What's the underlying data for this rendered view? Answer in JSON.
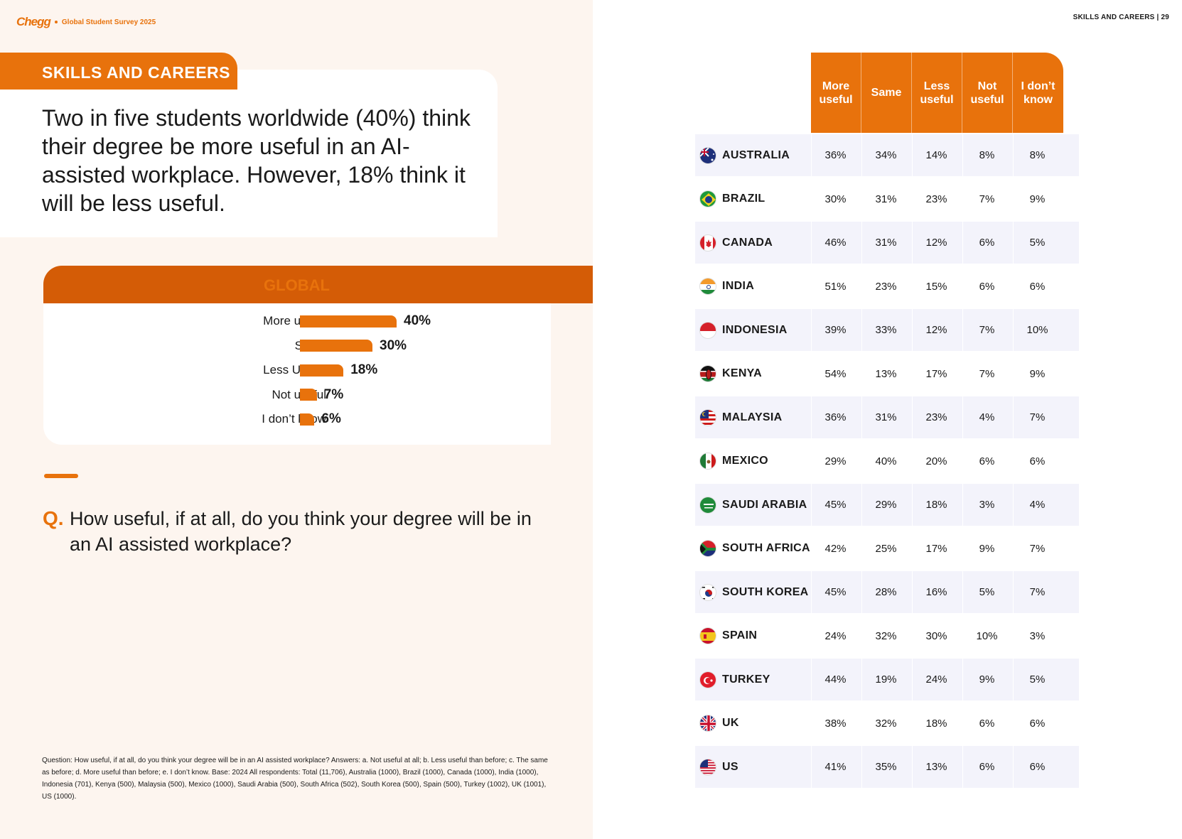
{
  "brand": {
    "logo": "Chegg",
    "subtitle": "Global Student Survey 2025"
  },
  "page_header": "SKILLS AND CAREERS  |  29",
  "section_tab": "SKILLS AND CAREERS",
  "headline": "Two in five students worldwide (40%) think their degree be more useful in an AI-assisted workplace. However, 18% think it will be less useful.",
  "global_title": "GLOBAL",
  "colors": {
    "accent": "#e8720c",
    "accent_dark": "#d45c06",
    "row_shade": "#f3f3fb",
    "panel_bg": "#fdf5ef"
  },
  "chart_data": {
    "type": "bar",
    "title": "GLOBAL",
    "categories": [
      "More useful",
      "Same",
      "Less Useful",
      "Not useful",
      "I don’t know"
    ],
    "values": [
      40,
      30,
      18,
      7,
      6
    ],
    "value_labels": [
      "40%",
      "30%",
      "18%",
      "7%",
      "6%"
    ],
    "unit": "%",
    "orientation": "horizontal"
  },
  "question": {
    "mark": "Q.",
    "text": "How useful, if at all, do you think your degree will be in an AI assisted workplace?"
  },
  "footnote": "Question: How useful, if at all, do you think your degree will be in an AI assisted workplace? Answers: a. Not useful at all; b. Less useful than before; c. The same as before; d. More useful than before; e. I don’t know. Base: 2024 All respondents: Total (11,706), Australia (1000), Brazil (1000), Canada (1000), India (1000), Indonesia (701), Kenya (500), Malaysia (500), Mexico (1000), Saudi Arabia (500), South Africa (502), South Korea (500), Spain (500), Turkey (1002), UK (1001), US (1000).",
  "table": {
    "headers": [
      "More useful",
      "Same",
      "Less useful",
      "Not useful",
      "I don’t know"
    ],
    "rows": [
      {
        "country": "AUSTRALIA",
        "flag": "australia-flag-icon",
        "values": [
          "36%",
          "34%",
          "14%",
          "8%",
          "8%"
        ]
      },
      {
        "country": "BRAZIL",
        "flag": "brazil-flag-icon",
        "values": [
          "30%",
          "31%",
          "23%",
          "7%",
          "9%"
        ]
      },
      {
        "country": "CANADA",
        "flag": "canada-flag-icon",
        "values": [
          "46%",
          "31%",
          "12%",
          "6%",
          "5%"
        ]
      },
      {
        "country": "INDIA",
        "flag": "india-flag-icon",
        "values": [
          "51%",
          "23%",
          "15%",
          "6%",
          "6%"
        ]
      },
      {
        "country": "INDONESIA",
        "flag": "indonesia-flag-icon",
        "values": [
          "39%",
          "33%",
          "12%",
          "7%",
          "10%"
        ]
      },
      {
        "country": "KENYA",
        "flag": "kenya-flag-icon",
        "values": [
          "54%",
          "13%",
          "17%",
          "7%",
          "9%"
        ]
      },
      {
        "country": "MALAYSIA",
        "flag": "malaysia-flag-icon",
        "values": [
          "36%",
          "31%",
          "23%",
          "4%",
          "7%"
        ]
      },
      {
        "country": "MEXICO",
        "flag": "mexico-flag-icon",
        "values": [
          "29%",
          "40%",
          "20%",
          "6%",
          "6%"
        ]
      },
      {
        "country": "SAUDI ARABIA",
        "flag": "saudi-arabia-flag-icon",
        "values": [
          "45%",
          "29%",
          "18%",
          "3%",
          "4%"
        ]
      },
      {
        "country": "SOUTH AFRICA",
        "flag": "south-africa-flag-icon",
        "values": [
          "42%",
          "25%",
          "17%",
          "9%",
          "7%"
        ]
      },
      {
        "country": "SOUTH KOREA",
        "flag": "south-korea-flag-icon",
        "values": [
          "45%",
          "28%",
          "16%",
          "5%",
          "7%"
        ]
      },
      {
        "country": "SPAIN",
        "flag": "spain-flag-icon",
        "values": [
          "24%",
          "32%",
          "30%",
          "10%",
          "3%"
        ]
      },
      {
        "country": "TURKEY",
        "flag": "turkey-flag-icon",
        "values": [
          "44%",
          "19%",
          "24%",
          "9%",
          "5%"
        ]
      },
      {
        "country": "UK",
        "flag": "uk-flag-icon",
        "values": [
          "38%",
          "32%",
          "18%",
          "6%",
          "6%"
        ]
      },
      {
        "country": "US",
        "flag": "us-flag-icon",
        "values": [
          "41%",
          "35%",
          "13%",
          "6%",
          "6%"
        ]
      }
    ]
  }
}
